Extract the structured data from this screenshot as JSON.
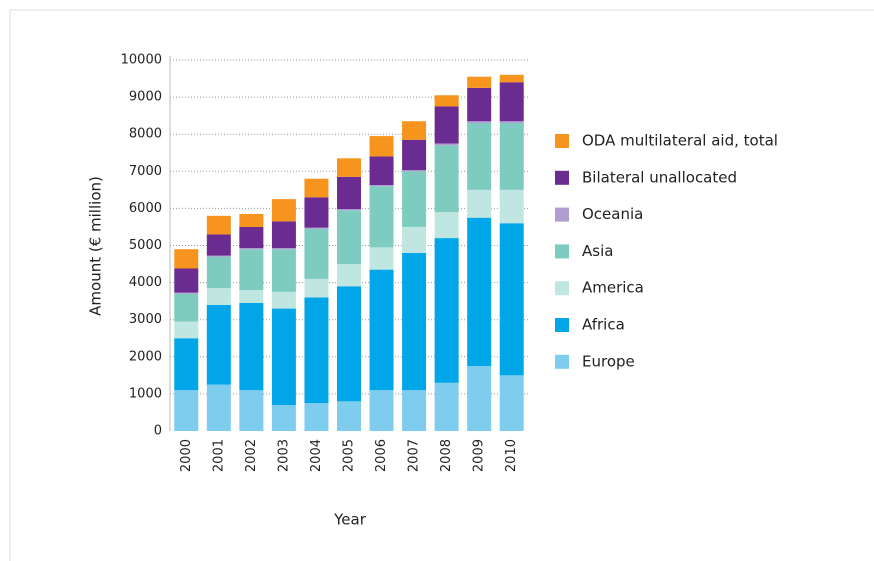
{
  "chart_data": {
    "type": "stacked_bar",
    "x_label": "Year",
    "y_label": "Amount (€ million)",
    "categories": [
      "2000",
      "2001",
      "2002",
      "2003",
      "2004",
      "2005",
      "2006",
      "2007",
      "2008",
      "2009",
      "2010"
    ],
    "series": [
      {
        "name": "Europe",
        "color": "#7fcdee",
        "values": [
          1100,
          1250,
          1100,
          700,
          750,
          800,
          1100,
          1100,
          1300,
          1750,
          1500
        ]
      },
      {
        "name": "Africa",
        "color": "#00a6e8",
        "values": [
          1400,
          2150,
          2350,
          2600,
          2850,
          3100,
          3250,
          3700,
          3900,
          4000,
          4100
        ]
      },
      {
        "name": "America",
        "color": "#bfe6e0",
        "values": [
          450,
          450,
          350,
          450,
          500,
          600,
          600,
          700,
          700,
          750,
          900
        ]
      },
      {
        "name": "Asia",
        "color": "#7ecbbf",
        "values": [
          750,
          850,
          1100,
          1150,
          1350,
          1450,
          1650,
          1500,
          1800,
          1800,
          1800
        ]
      },
      {
        "name": "Oceania",
        "color": "#b19cd0",
        "values": [
          30,
          30,
          30,
          30,
          30,
          30,
          30,
          30,
          50,
          50,
          50
        ]
      },
      {
        "name": "Bilateral unallocated",
        "color": "#6a2c91",
        "values": [
          650,
          570,
          570,
          720,
          820,
          870,
          770,
          820,
          1000,
          900,
          1050
        ]
      },
      {
        "name": "ODA multilateral aid, total",
        "color": "#f7941d",
        "values": [
          520,
          500,
          350,
          600,
          500,
          500,
          550,
          500,
          300,
          300,
          200
        ]
      }
    ],
    "ylim": [
      0,
      10000
    ],
    "yticks": [
      0,
      1000,
      2000,
      3000,
      4000,
      5000,
      6000,
      7000,
      8000,
      9000,
      10000
    ],
    "grid": true,
    "legend": "right"
  }
}
